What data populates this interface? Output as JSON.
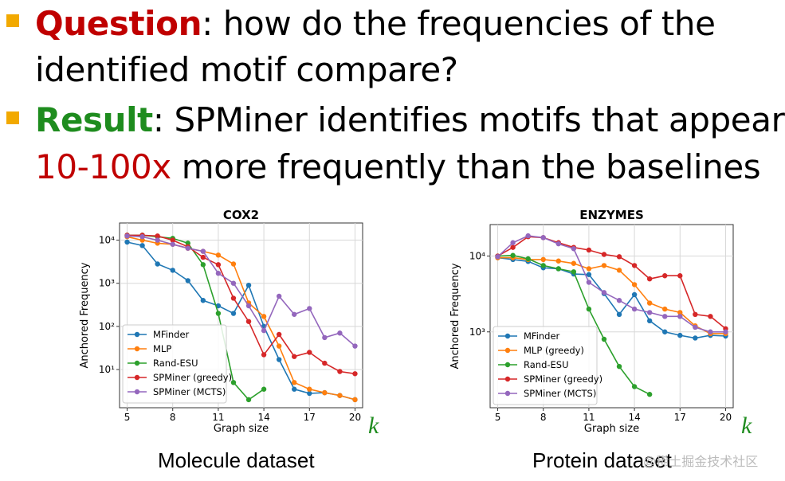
{
  "bullets": [
    {
      "keyword": "Question",
      "keyword_color": "#c00000",
      "line1": ": how do the frequencies of the",
      "line2": "identified motif compare?"
    },
    {
      "keyword": "Result",
      "keyword_color": "#1e8c1e",
      "line1": ": SPMiner identifies motifs that appear",
      "line2_highlight": "10-100x",
      "line2": " more frequently than the baselines"
    }
  ],
  "captions": {
    "left": "Molecule dataset",
    "right": "Protein dataset",
    "k": "k"
  },
  "watermark": "@稀土掘金技术社区",
  "series_colors": {
    "MFinder": "#1f77b4",
    "MLP": "#ff7f0e",
    "Rand-ESU": "#2ca02c",
    "SPMiner (greedy)": "#d62728",
    "SPMiner (MCTS)": "#9467bd"
  },
  "chart_data": [
    {
      "type": "line",
      "title": "COX2",
      "xlabel": "Graph size",
      "ylabel": "Anchored Frequency",
      "yscale": "log",
      "xlim": [
        4.5,
        20.5
      ],
      "ylim": [
        1.3,
        25000
      ],
      "xticks": [
        5,
        8,
        11,
        14,
        17,
        20
      ],
      "yticks": [
        {
          "v": 10,
          "label": "10¹"
        },
        {
          "v": 100,
          "label": "10²"
        },
        {
          "v": 1000,
          "label": "10³"
        },
        {
          "v": 10000,
          "label": "10⁴"
        }
      ],
      "legend": "lower-left",
      "series": [
        {
          "name": "MFinder",
          "color": "#1f77b4",
          "x": [
            5,
            6,
            7,
            8,
            9,
            10,
            11,
            12,
            13,
            14,
            15,
            16,
            17,
            18,
            19,
            20
          ],
          "y": [
            9000,
            7500,
            2800,
            2000,
            1150,
            400,
            300,
            200,
            900,
            100,
            17,
            3.5,
            2.8,
            2.9,
            2.5,
            2.0
          ]
        },
        {
          "name": "MLP",
          "color": "#ff7f0e",
          "x": [
            5,
            6,
            7,
            8,
            9,
            10,
            11,
            12,
            13,
            14,
            15,
            16,
            17,
            18,
            19,
            20
          ],
          "y": [
            12000,
            10000,
            8500,
            8000,
            6500,
            5500,
            4500,
            2800,
            350,
            170,
            35,
            5,
            3.5,
            2.9,
            2.5,
            2.0
          ]
        },
        {
          "name": "Rand-ESU",
          "color": "#2ca02c",
          "x": [
            5,
            6,
            7,
            8,
            9,
            10,
            11,
            12,
            13,
            14
          ],
          "y": [
            13000,
            13000,
            12000,
            11000,
            8500,
            2700,
            200,
            5,
            2,
            3.5
          ]
        },
        {
          "name": "SPMiner (greedy)",
          "color": "#d62728",
          "x": [
            5,
            6,
            7,
            8,
            9,
            10,
            11,
            12,
            13,
            14,
            15,
            16,
            17,
            18,
            19,
            20
          ],
          "y": [
            13000,
            13000,
            12500,
            10000,
            7000,
            4000,
            2700,
            450,
            130,
            22,
            65,
            20,
            25,
            14,
            9,
            8
          ]
        },
        {
          "name": "SPMiner (MCTS)",
          "color": "#9467bd",
          "x": [
            5,
            6,
            7,
            8,
            9,
            10,
            11,
            12,
            13,
            14,
            15,
            16,
            17,
            18,
            19,
            20
          ],
          "y": [
            12500,
            12000,
            10000,
            8000,
            6500,
            5500,
            1700,
            1000,
            300,
            80,
            500,
            190,
            260,
            55,
            70,
            35
          ]
        }
      ]
    },
    {
      "type": "line",
      "title": "ENZYMES",
      "xlabel": "Graph size",
      "ylabel": "Anchored Frequency",
      "yscale": "log",
      "xlim": [
        4.5,
        20.5
      ],
      "ylim": [
        100,
        26000
      ],
      "xticks": [
        5,
        8,
        11,
        14,
        17,
        20
      ],
      "yticks": [
        {
          "v": 1000,
          "label": "10³"
        },
        {
          "v": 10000,
          "label": "10⁴"
        }
      ],
      "legend": "lower-left",
      "series": [
        {
          "name": "MFinder",
          "color": "#1f77b4",
          "x": [
            5,
            6,
            7,
            8,
            9,
            10,
            11,
            12,
            13,
            14,
            15,
            16,
            17,
            18,
            19,
            20
          ],
          "y": [
            9500,
            9000,
            8500,
            7000,
            6800,
            5800,
            5700,
            3200,
            1700,
            3100,
            1400,
            1000,
            900,
            830,
            900,
            880
          ]
        },
        {
          "name": "MLP (greedy)",
          "color": "#ff7f0e",
          "x": [
            5,
            6,
            7,
            8,
            9,
            10,
            11,
            12,
            13,
            14,
            15,
            16,
            17,
            18,
            19,
            20
          ],
          "y": [
            9500,
            9500,
            9000,
            9000,
            8600,
            8000,
            6800,
            7500,
            6500,
            4200,
            2400,
            2000,
            1800,
            1200,
            950,
            950
          ]
        },
        {
          "name": "Rand-ESU",
          "color": "#2ca02c",
          "x": [
            5,
            6,
            7,
            8,
            9,
            10,
            11,
            12,
            13,
            14,
            15
          ],
          "y": [
            10000,
            10200,
            9200,
            7500,
            6800,
            6200,
            2000,
            800,
            350,
            190,
            150
          ]
        },
        {
          "name": "SPMiner (greedy)",
          "color": "#d62728",
          "x": [
            5,
            6,
            7,
            8,
            9,
            10,
            11,
            12,
            13,
            14,
            15,
            16,
            17,
            18,
            19,
            20
          ],
          "y": [
            10000,
            13000,
            18000,
            17500,
            15000,
            13000,
            12000,
            10500,
            9800,
            7500,
            5000,
            5500,
            5500,
            1700,
            1600,
            1100
          ]
        },
        {
          "name": "SPMiner (MCTS)",
          "color": "#9467bd",
          "x": [
            5,
            6,
            7,
            8,
            9,
            10,
            11,
            12,
            13,
            14,
            15,
            16,
            17,
            18,
            19,
            20
          ],
          "y": [
            9800,
            15000,
            18500,
            17500,
            14500,
            12500,
            4500,
            3300,
            2600,
            2000,
            1800,
            1600,
            1600,
            1150,
            1000,
            1000
          ]
        }
      ]
    }
  ]
}
